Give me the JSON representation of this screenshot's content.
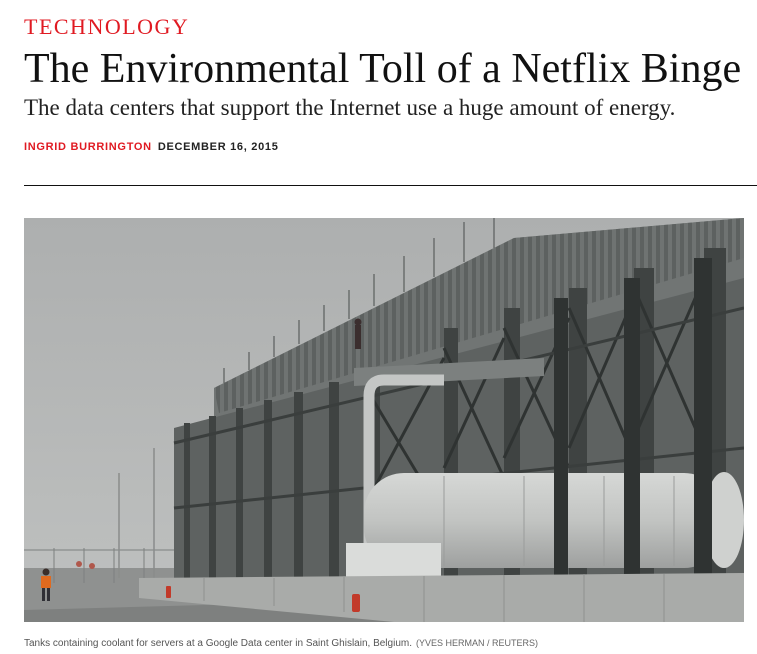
{
  "article": {
    "section": "TECHNOLOGY",
    "title": "The Environmental Toll of a Netflix Binge",
    "dek": "The data centers that support the Internet use a huge amount of energy.",
    "author": "INGRID BURRINGTON",
    "date": "DECEMBER 16, 2015"
  },
  "photo": {
    "caption": "Tanks containing coolant for servers at a Google Data center in Saint Ghislain, Belgium.",
    "credit": "(YVES HERMAN / REUTERS)"
  },
  "colors": {
    "accent": "#e01a22",
    "text": "#111111",
    "rule": "#111111",
    "fog": "#b3b5b5"
  }
}
